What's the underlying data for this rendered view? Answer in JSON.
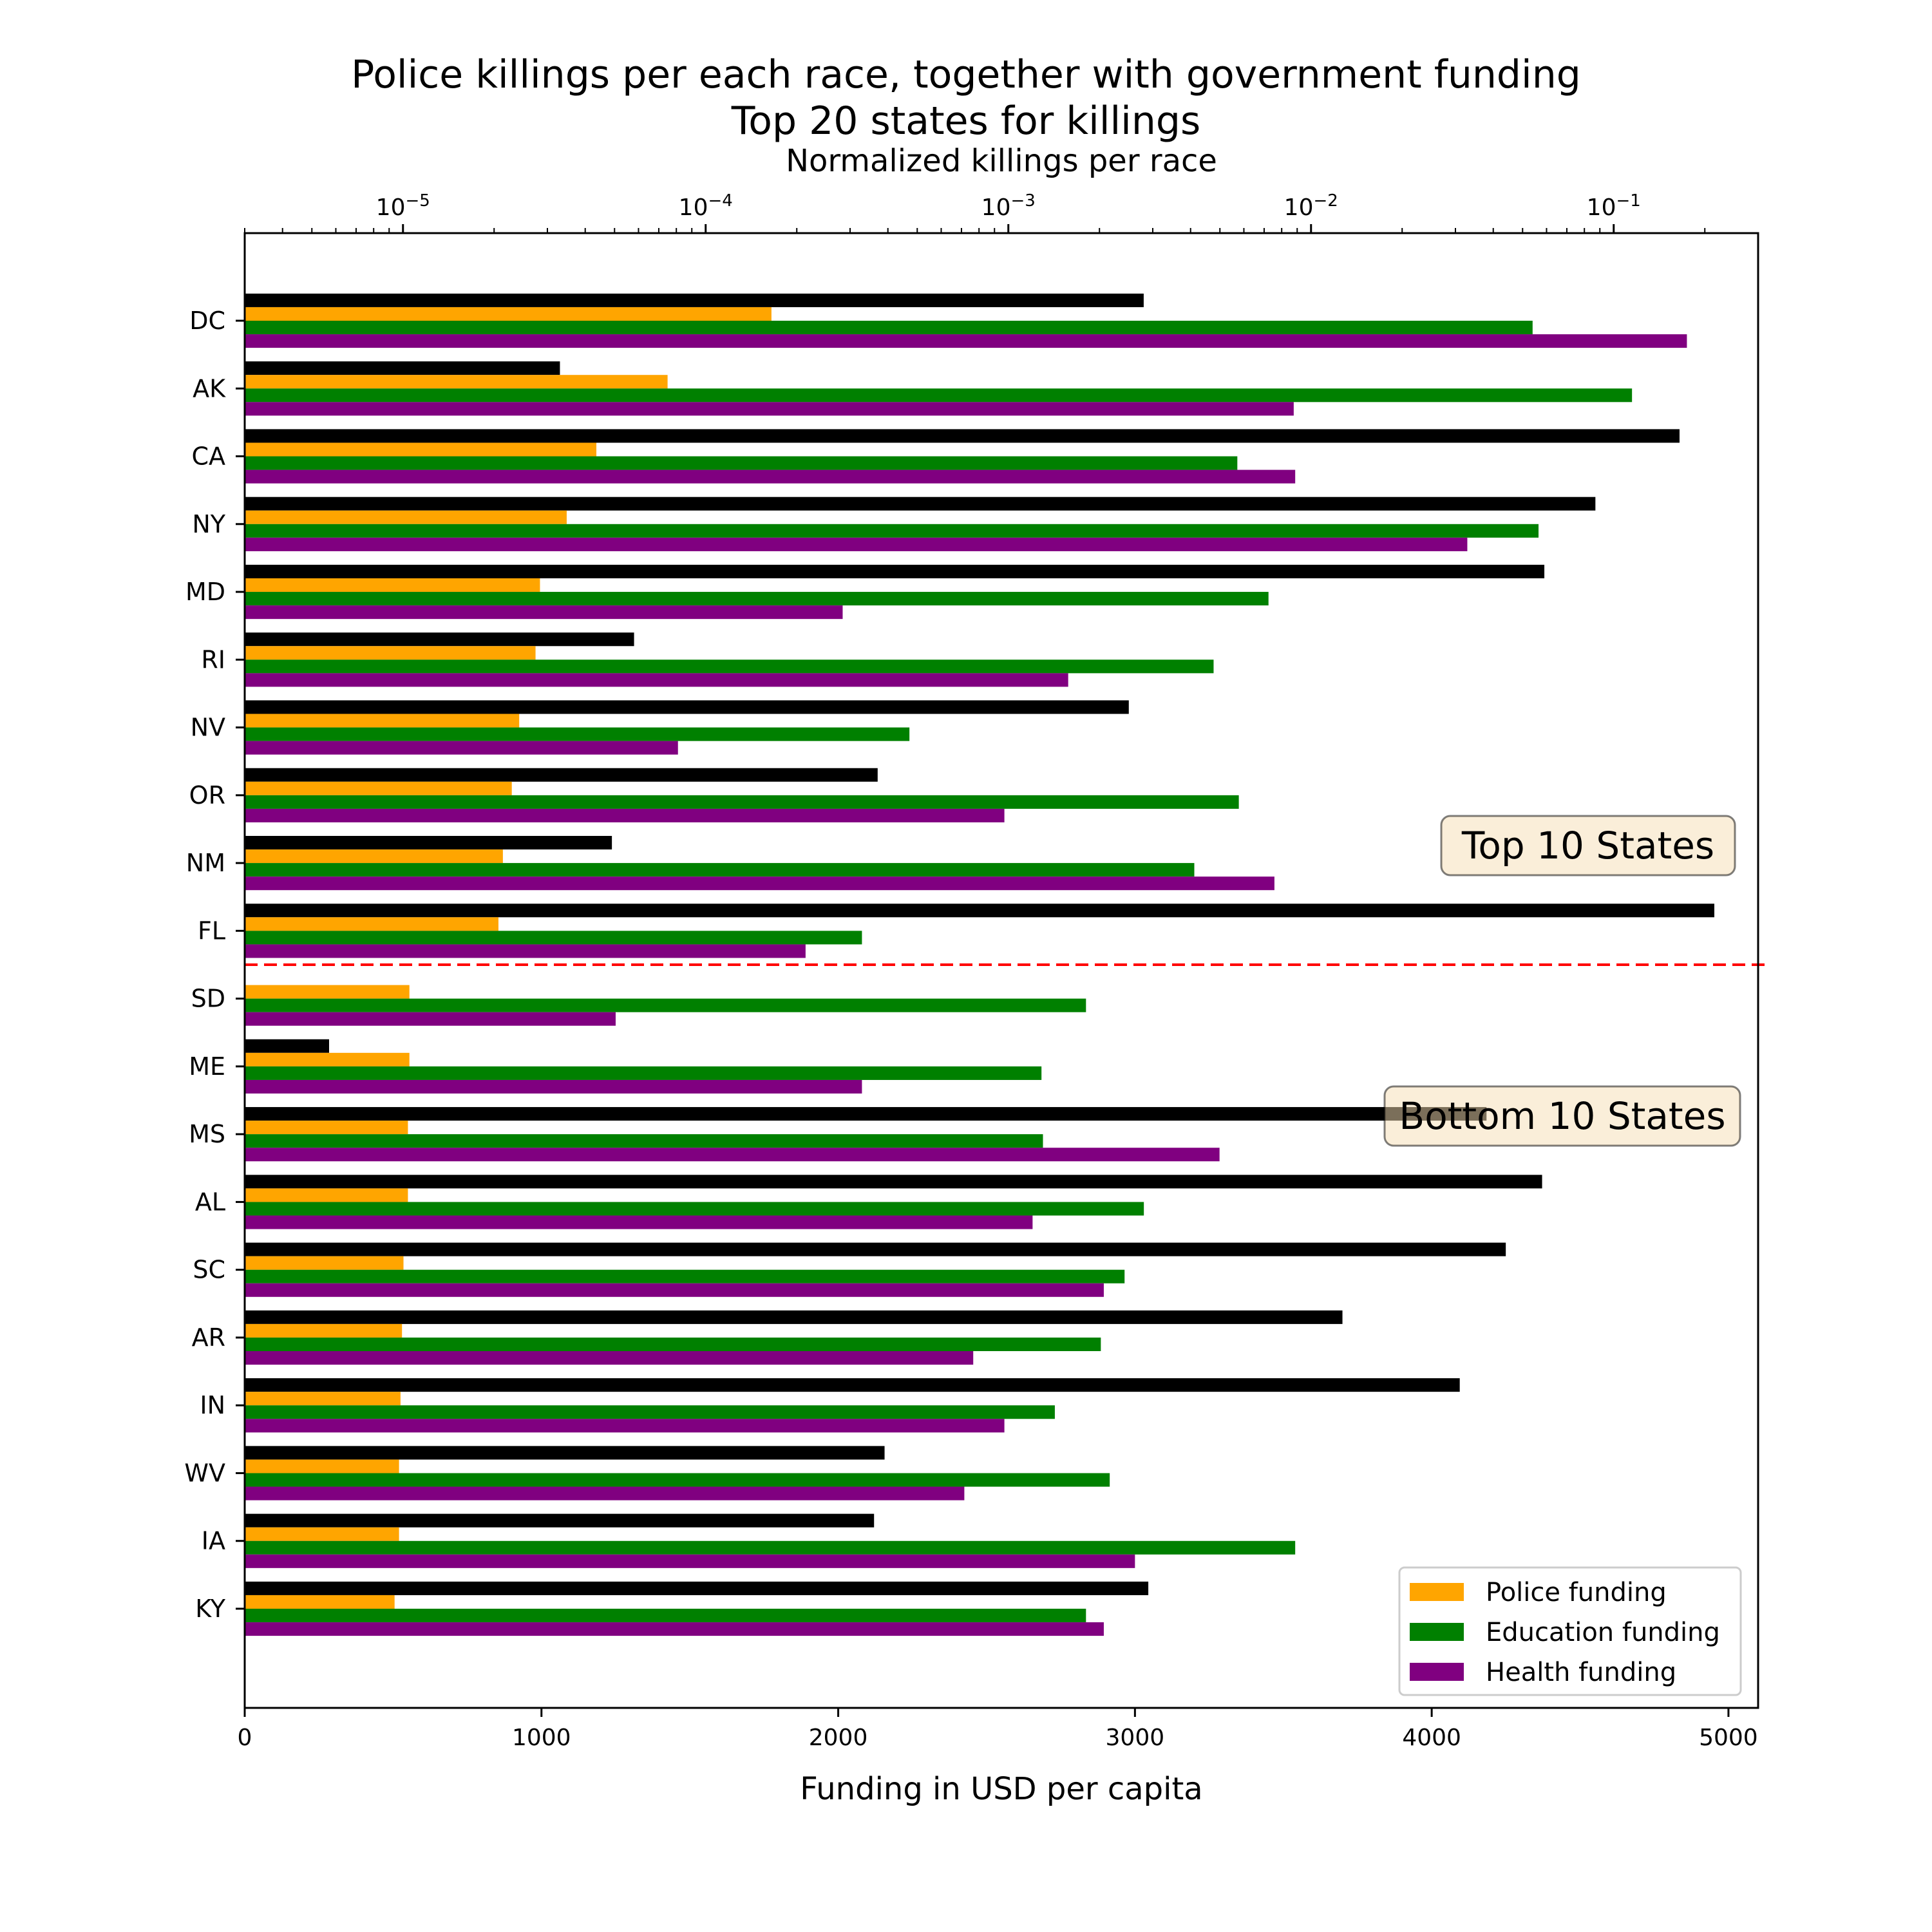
{
  "title": {
    "line1": "Police killings per each race, together with government funding",
    "line2": "Top 20 states for killings"
  },
  "chart_data": {
    "type": "bar",
    "orientation": "horizontal",
    "categories": [
      "DC",
      "AK",
      "CA",
      "NY",
      "MD",
      "RI",
      "NV",
      "OR",
      "NM",
      "FL",
      "SD",
      "ME",
      "MS",
      "AL",
      "SC",
      "AR",
      "IN",
      "WV",
      "IA",
      "KY"
    ],
    "xlabel": "Funding in USD per capita",
    "xlim": [
      0,
      5100
    ],
    "xticks": [
      0,
      1000,
      2000,
      3000,
      4000,
      5000
    ],
    "top_axis": {
      "label": "Normalized killings per race",
      "scale": "log",
      "lim": [
        3e-06,
        0.3
      ],
      "ticks": [
        1e-05,
        0.0001,
        0.001,
        0.01,
        0.1
      ],
      "tick_labels": [
        [
          "10",
          "−5"
        ],
        [
          "10",
          "−4"
        ],
        [
          "10",
          "−3"
        ],
        [
          "10",
          "−2"
        ],
        [
          "10",
          "−1"
        ]
      ]
    },
    "series": [
      {
        "values": [
          0.0028,
          3.3e-05,
          0.165,
          0.087,
          0.059,
          5.8e-05,
          0.0025,
          0.00037,
          4.9e-05,
          0.215,
          null,
          5.7e-06,
          0.038,
          0.058,
          0.044,
          0.0127,
          0.031,
          0.00039,
          0.00036,
          0.0029
        ],
        "color": "#000000",
        "axis": "top"
      },
      {
        "name": "Police funding",
        "values": [
          1775,
          1425,
          1185,
          1085,
          995,
          980,
          925,
          900,
          870,
          855,
          555,
          555,
          550,
          550,
          535,
          530,
          525,
          520,
          520,
          505
        ],
        "color": "#FFA500"
      },
      {
        "name": "Education funding",
        "values": [
          4340,
          4675,
          3345,
          4360,
          3450,
          3265,
          2240,
          3350,
          3200,
          2080,
          2835,
          2685,
          2690,
          3030,
          2965,
          2885,
          2730,
          2915,
          3540,
          2835
        ],
        "color": "#008000"
      },
      {
        "name": "Health funding",
        "values": [
          4860,
          3535,
          3540,
          4120,
          2015,
          2775,
          1460,
          2560,
          3470,
          1890,
          1250,
          2080,
          3285,
          2655,
          2895,
          2455,
          2560,
          2425,
          3000,
          2895
        ],
        "color": "#800080"
      }
    ],
    "divider": {
      "between": [
        "FL",
        "SD"
      ],
      "color": "#FF0000",
      "style": "dashed"
    },
    "annotations": [
      "Top 10 States",
      "Bottom 10 States"
    ],
    "legend": {
      "placement": "lower-right",
      "entries": [
        "Police funding",
        "Education funding",
        "Health funding"
      ]
    },
    "grid": false
  }
}
